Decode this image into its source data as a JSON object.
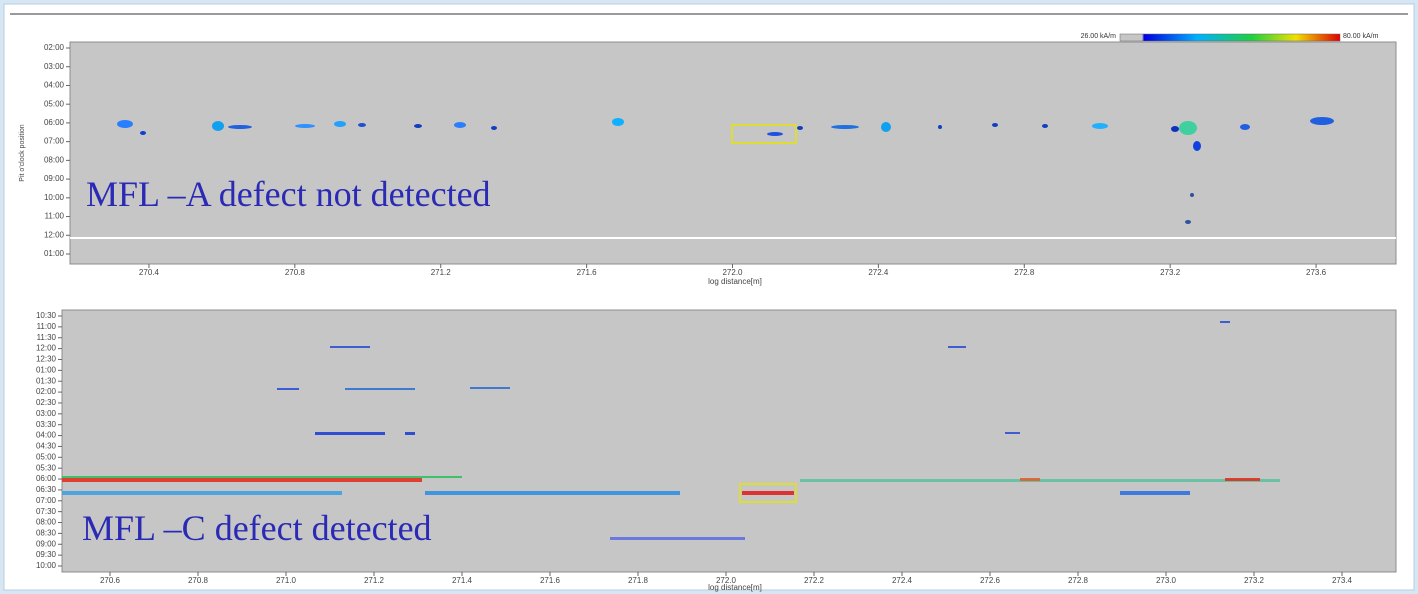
{
  "top_panel": {
    "colorbar": {
      "min_label": "26.00 kA/m",
      "max_label": "80.00 kA/m"
    },
    "y_axis_label": "Pit o'clock position",
    "y_ticks": [
      "02:00",
      "03:00",
      "04:00",
      "05:00",
      "06:00",
      "07:00",
      "08:00",
      "09:00",
      "10:00",
      "11:00",
      "12:00",
      "01:00"
    ],
    "x_ticks": [
      "270.4",
      "270.8",
      "271.2",
      "271.6",
      "272.0",
      "272.4",
      "272.8",
      "273.2",
      "273.6"
    ],
    "x_axis_label": "log distance[m]",
    "annotation": "MFL –A defect not detected"
  },
  "bottom_panel": {
    "y_ticks": [
      "10:30",
      "11:00",
      "11:30",
      "12:00",
      "12:30",
      "01:00",
      "01:30",
      "02:00",
      "02:30",
      "03:00",
      "03:30",
      "04:00",
      "04:30",
      "05:00",
      "05:30",
      "06:00",
      "06:30",
      "07:00",
      "07:30",
      "08:00",
      "08:30",
      "09:00",
      "09:30",
      "10:00"
    ],
    "x_ticks": [
      "270.6",
      "270.8",
      "271.0",
      "271.2",
      "271.4",
      "271.6",
      "271.8",
      "272.0",
      "272.2",
      "272.4",
      "272.6",
      "272.8",
      "273.0",
      "273.2",
      "273.4"
    ],
    "x_axis_label": "log distance[m]",
    "annotation": "MFL –C defect detected"
  }
}
